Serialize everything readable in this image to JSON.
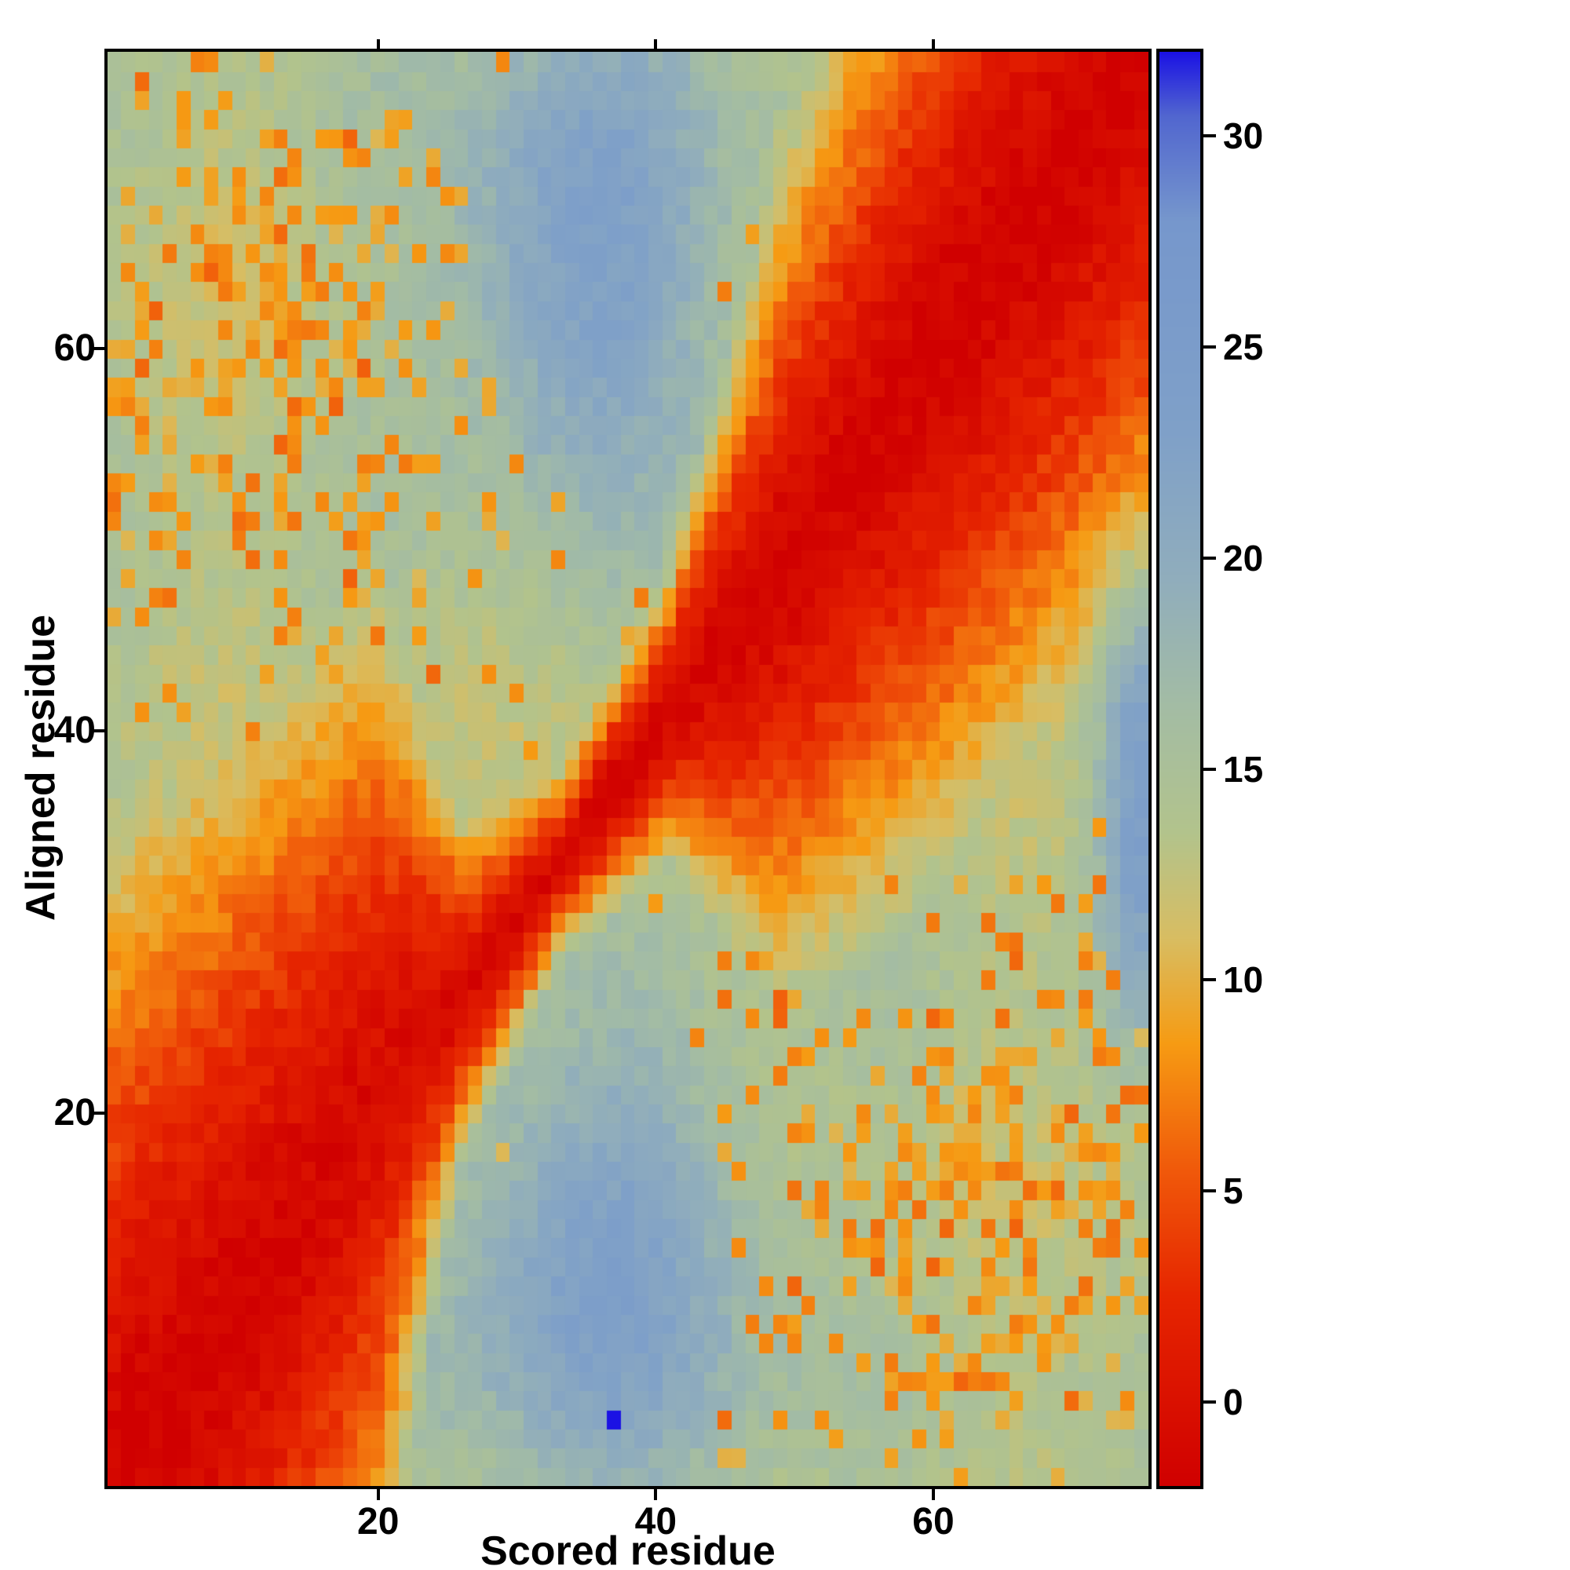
{
  "chart_data": {
    "type": "heatmap",
    "title": "",
    "xlabel": "Scored residue",
    "ylabel": "Aligned residue",
    "x_ticks": [
      20,
      40,
      60
    ],
    "y_ticks": [
      20,
      40,
      60
    ],
    "n_cols": 75,
    "n_rows": 75,
    "x_range": [
      1,
      75
    ],
    "y_range": [
      1,
      75
    ],
    "legend": "none",
    "grid": false,
    "colorbar": {
      "position": "right",
      "ticks": [
        0,
        5,
        10,
        15,
        20,
        25,
        30
      ],
      "vmin": -2,
      "vmax": 32
    },
    "colormap": [
      {
        "v": -2.0,
        "c": "#d00000"
      },
      {
        "v": 2.5,
        "c": "#e62500"
      },
      {
        "v": 5.5,
        "c": "#f0590a"
      },
      {
        "v": 8.5,
        "c": "#f69b13"
      },
      {
        "v": 11.0,
        "c": "#d8bd62"
      },
      {
        "v": 13.5,
        "c": "#b2c38c"
      },
      {
        "v": 16.5,
        "c": "#a3bca4"
      },
      {
        "v": 19.5,
        "c": "#90adbc"
      },
      {
        "v": 23.0,
        "c": "#7fa0c8"
      },
      {
        "v": 28.0,
        "c": "#7697cc"
      },
      {
        "v": 30.5,
        "c": "#5166cf"
      },
      {
        "v": 32.0,
        "c": "#1b12e4"
      }
    ],
    "description": "75x75 residue score matrix. Low scores (red) follow the alignment diagonal: a broad red block over residues 1-22, a narrow red band through residues 23-44, and a broad red block over residues 45-75, each ringed by orange fringes. High scores (slate blue, ~20-25) fill off-diagonal basins centered near scored 36 / aligned 12 and scored 35 / aligned 65 and along the right edge near aligned 37. Sage-green background (~13-14) elsewhere with clusters of scattered orange (~8) cells in the top-left corner (around 11,60) and bottom-right corner (around 63,14). A single maximum bright-blue cell sits near scored residue 37, aligned residue 4.",
    "model": {
      "seed": 7,
      "diag_min": -2,
      "band_gain": 16,
      "band_exp": 1.4,
      "bg_base": 13.6,
      "bg_wave": {
        "ax": 0.8,
        "fx": 0.33,
        "px": 1.7,
        "ay": 0.8,
        "fy": 0.27,
        "py": 0.4
      },
      "noise": 2.4,
      "width_points": [
        [
          1,
          36
        ],
        [
          14,
          31
        ],
        [
          20,
          28
        ],
        [
          26,
          10
        ],
        [
          33,
          5
        ],
        [
          41,
          8
        ],
        [
          49,
          24
        ],
        [
          60,
          29
        ],
        [
          75,
          32
        ]
      ],
      "wells": [
        {
          "x": 36,
          "y": 12,
          "sx": 9,
          "sy": 8,
          "a": 9.5
        },
        {
          "x": 35,
          "y": 65,
          "sx": 8,
          "sy": 9,
          "a": 9.5
        },
        {
          "x": 75,
          "y": 37,
          "sx": 2.2,
          "sy": 8,
          "a": 10
        }
      ],
      "speckle_clusters": [
        {
          "x": 11,
          "y": 60,
          "s": 10,
          "p": 0.5
        },
        {
          "x": 63,
          "y": 14,
          "s": 10,
          "p": 0.5
        }
      ],
      "speckle_value": 8.3,
      "sparse_speckle_p": 0.012,
      "max_cell": {
        "x": 37,
        "y": 4,
        "v": 32
      }
    }
  }
}
